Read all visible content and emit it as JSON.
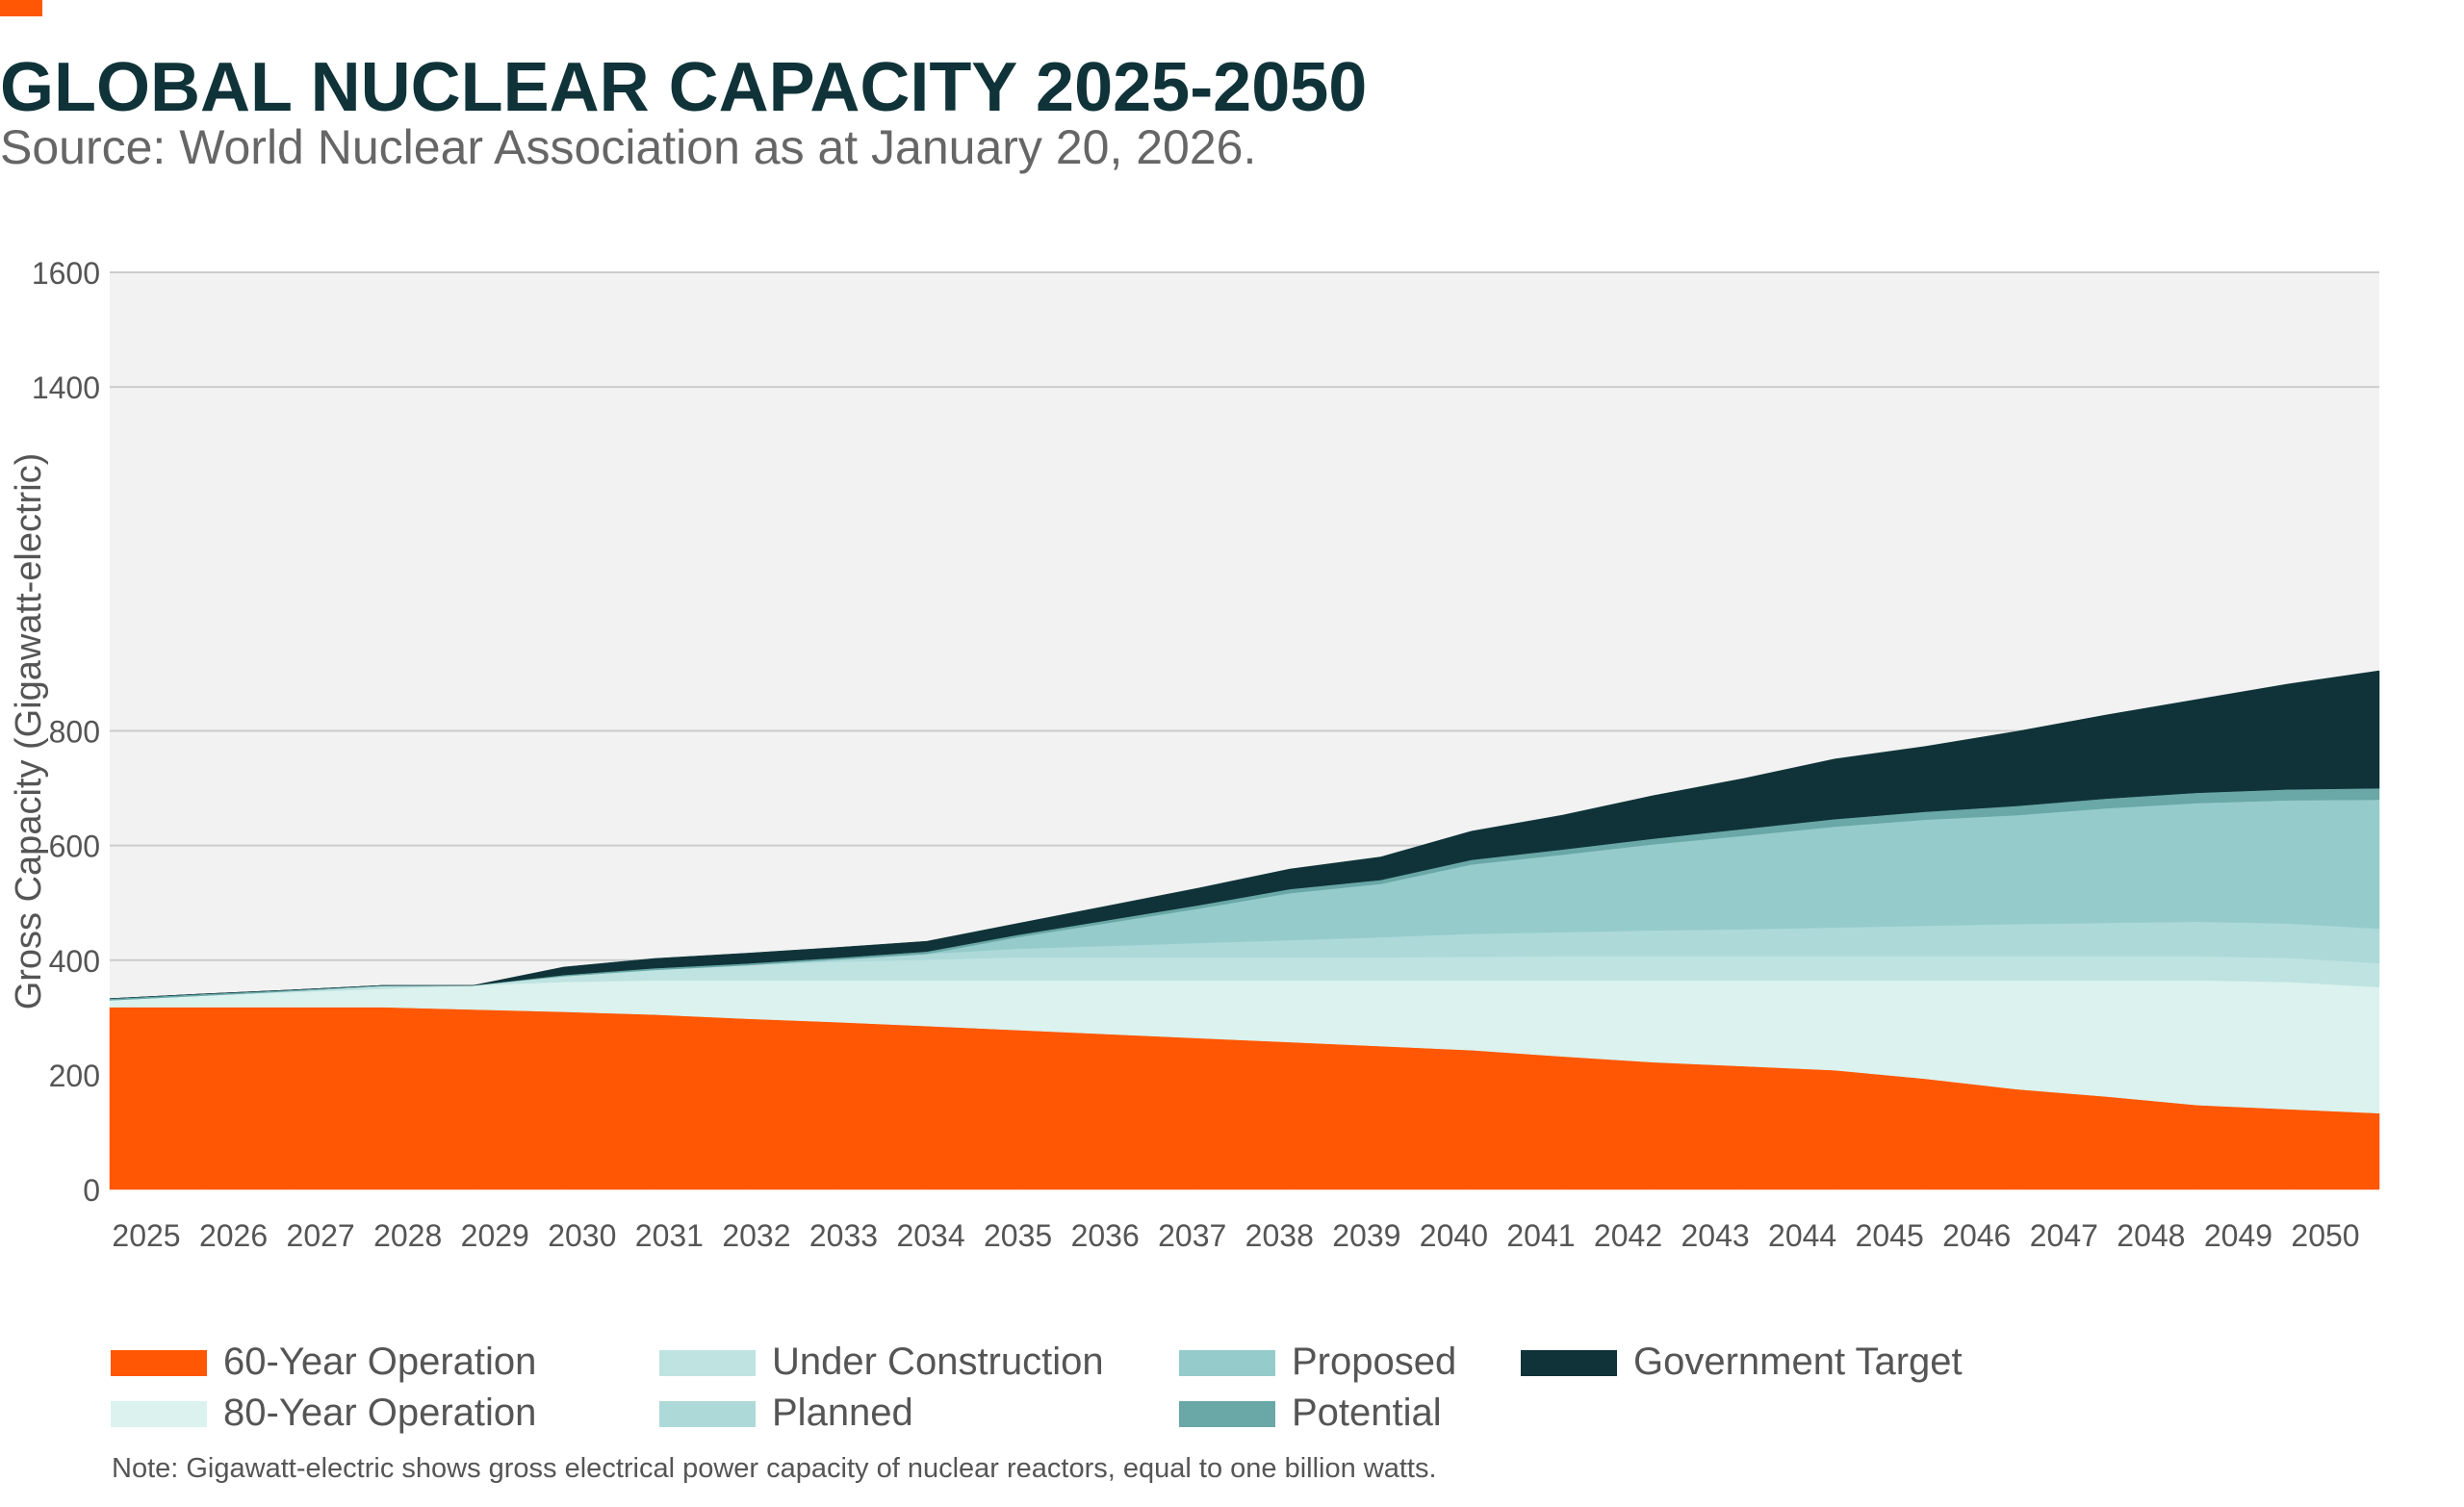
{
  "header": {
    "title": "GLOBAL NUCLEAR CAPACITY 2025-2050",
    "subtitle": "Source: World Nuclear Association as at January 20, 2026."
  },
  "note": "Note: Gigawatt-electric shows gross electrical power capacity of nuclear reactors, equal to one billion watts.",
  "colors": {
    "accent": "#ff5703",
    "plot_background": "#f2f2f2",
    "gridline": "#cccccc"
  },
  "chart_data": {
    "type": "area",
    "stacked": true,
    "title": "GLOBAL NUCLEAR CAPACITY 2025-2050",
    "ylabel": "Gross Capacity (Gigawatt-electric)",
    "xlabel": "",
    "x": [
      2025,
      2026,
      2027,
      2028,
      2029,
      2030,
      2031,
      2032,
      2033,
      2034,
      2035,
      2036,
      2037,
      2038,
      2039,
      2040,
      2041,
      2042,
      2043,
      2044,
      2045,
      2046,
      2047,
      2048,
      2049,
      2050
    ],
    "yticks": [
      0,
      200,
      400,
      600,
      800,
      1400,
      1600
    ],
    "ylim": [
      0,
      1600
    ],
    "grid": true,
    "legend_position": "bottom",
    "series": [
      {
        "name": "60-Year Operation",
        "color": "#ff5703",
        "values": [
          318,
          318,
          318,
          318,
          314,
          310,
          305,
          298,
          292,
          285,
          278,
          271,
          264,
          257,
          250,
          243,
          232,
          222,
          215,
          208,
          193,
          175,
          162,
          147,
          140,
          133
        ]
      },
      {
        "name": "80-Year Operation",
        "color": "#dbf2ee",
        "values": [
          12,
          20,
          26,
          32,
          42,
          52,
          60,
          67,
          73,
          80,
          87,
          94,
          101,
          108,
          115,
          122,
          133,
          143,
          150,
          157,
          172,
          190,
          203,
          218,
          222,
          220
        ]
      },
      {
        "name": "Under Construction",
        "color": "#bee3e1",
        "values": [
          0,
          0,
          2,
          5,
          0,
          10,
          18,
          26,
          32,
          36,
          40,
          40,
          40,
          40,
          40,
          41,
          42,
          42,
          42,
          42,
          42,
          42,
          42,
          42,
          42,
          42
        ]
      },
      {
        "name": "Planned",
        "color": "#add9d9",
        "values": [
          0,
          0,
          0,
          0,
          0,
          0,
          0,
          0,
          4,
          10,
          15,
          20,
          25,
          30,
          35,
          40,
          42,
          45,
          47,
          50,
          53,
          56,
          58,
          60,
          60,
          60
        ]
      },
      {
        "name": "Proposed",
        "color": "#95cbcb",
        "values": [
          0,
          0,
          0,
          0,
          0,
          0,
          0,
          0,
          0,
          0,
          20,
          40,
          60,
          82,
          93,
          121,
          135,
          150,
          163,
          176,
          185,
          190,
          200,
          207,
          215,
          225
        ]
      },
      {
        "name": "Potential",
        "color": "#6aa7a7",
        "values": [
          3,
          3,
          2,
          1,
          0,
          2,
          3,
          3,
          3,
          4,
          4,
          5,
          6,
          7,
          7,
          8,
          9,
          10,
          12,
          13,
          14,
          16,
          17,
          18,
          19,
          20
        ]
      },
      {
        "name": "Government Target",
        "color": "#0f3338",
        "values": [
          0,
          0,
          0,
          0,
          0,
          14,
          17,
          18,
          18,
          18,
          20,
          25,
          30,
          35,
          40,
          50,
          60,
          75,
          88,
          105,
          114,
          130,
          146,
          163,
          184,
          205
        ]
      }
    ]
  }
}
